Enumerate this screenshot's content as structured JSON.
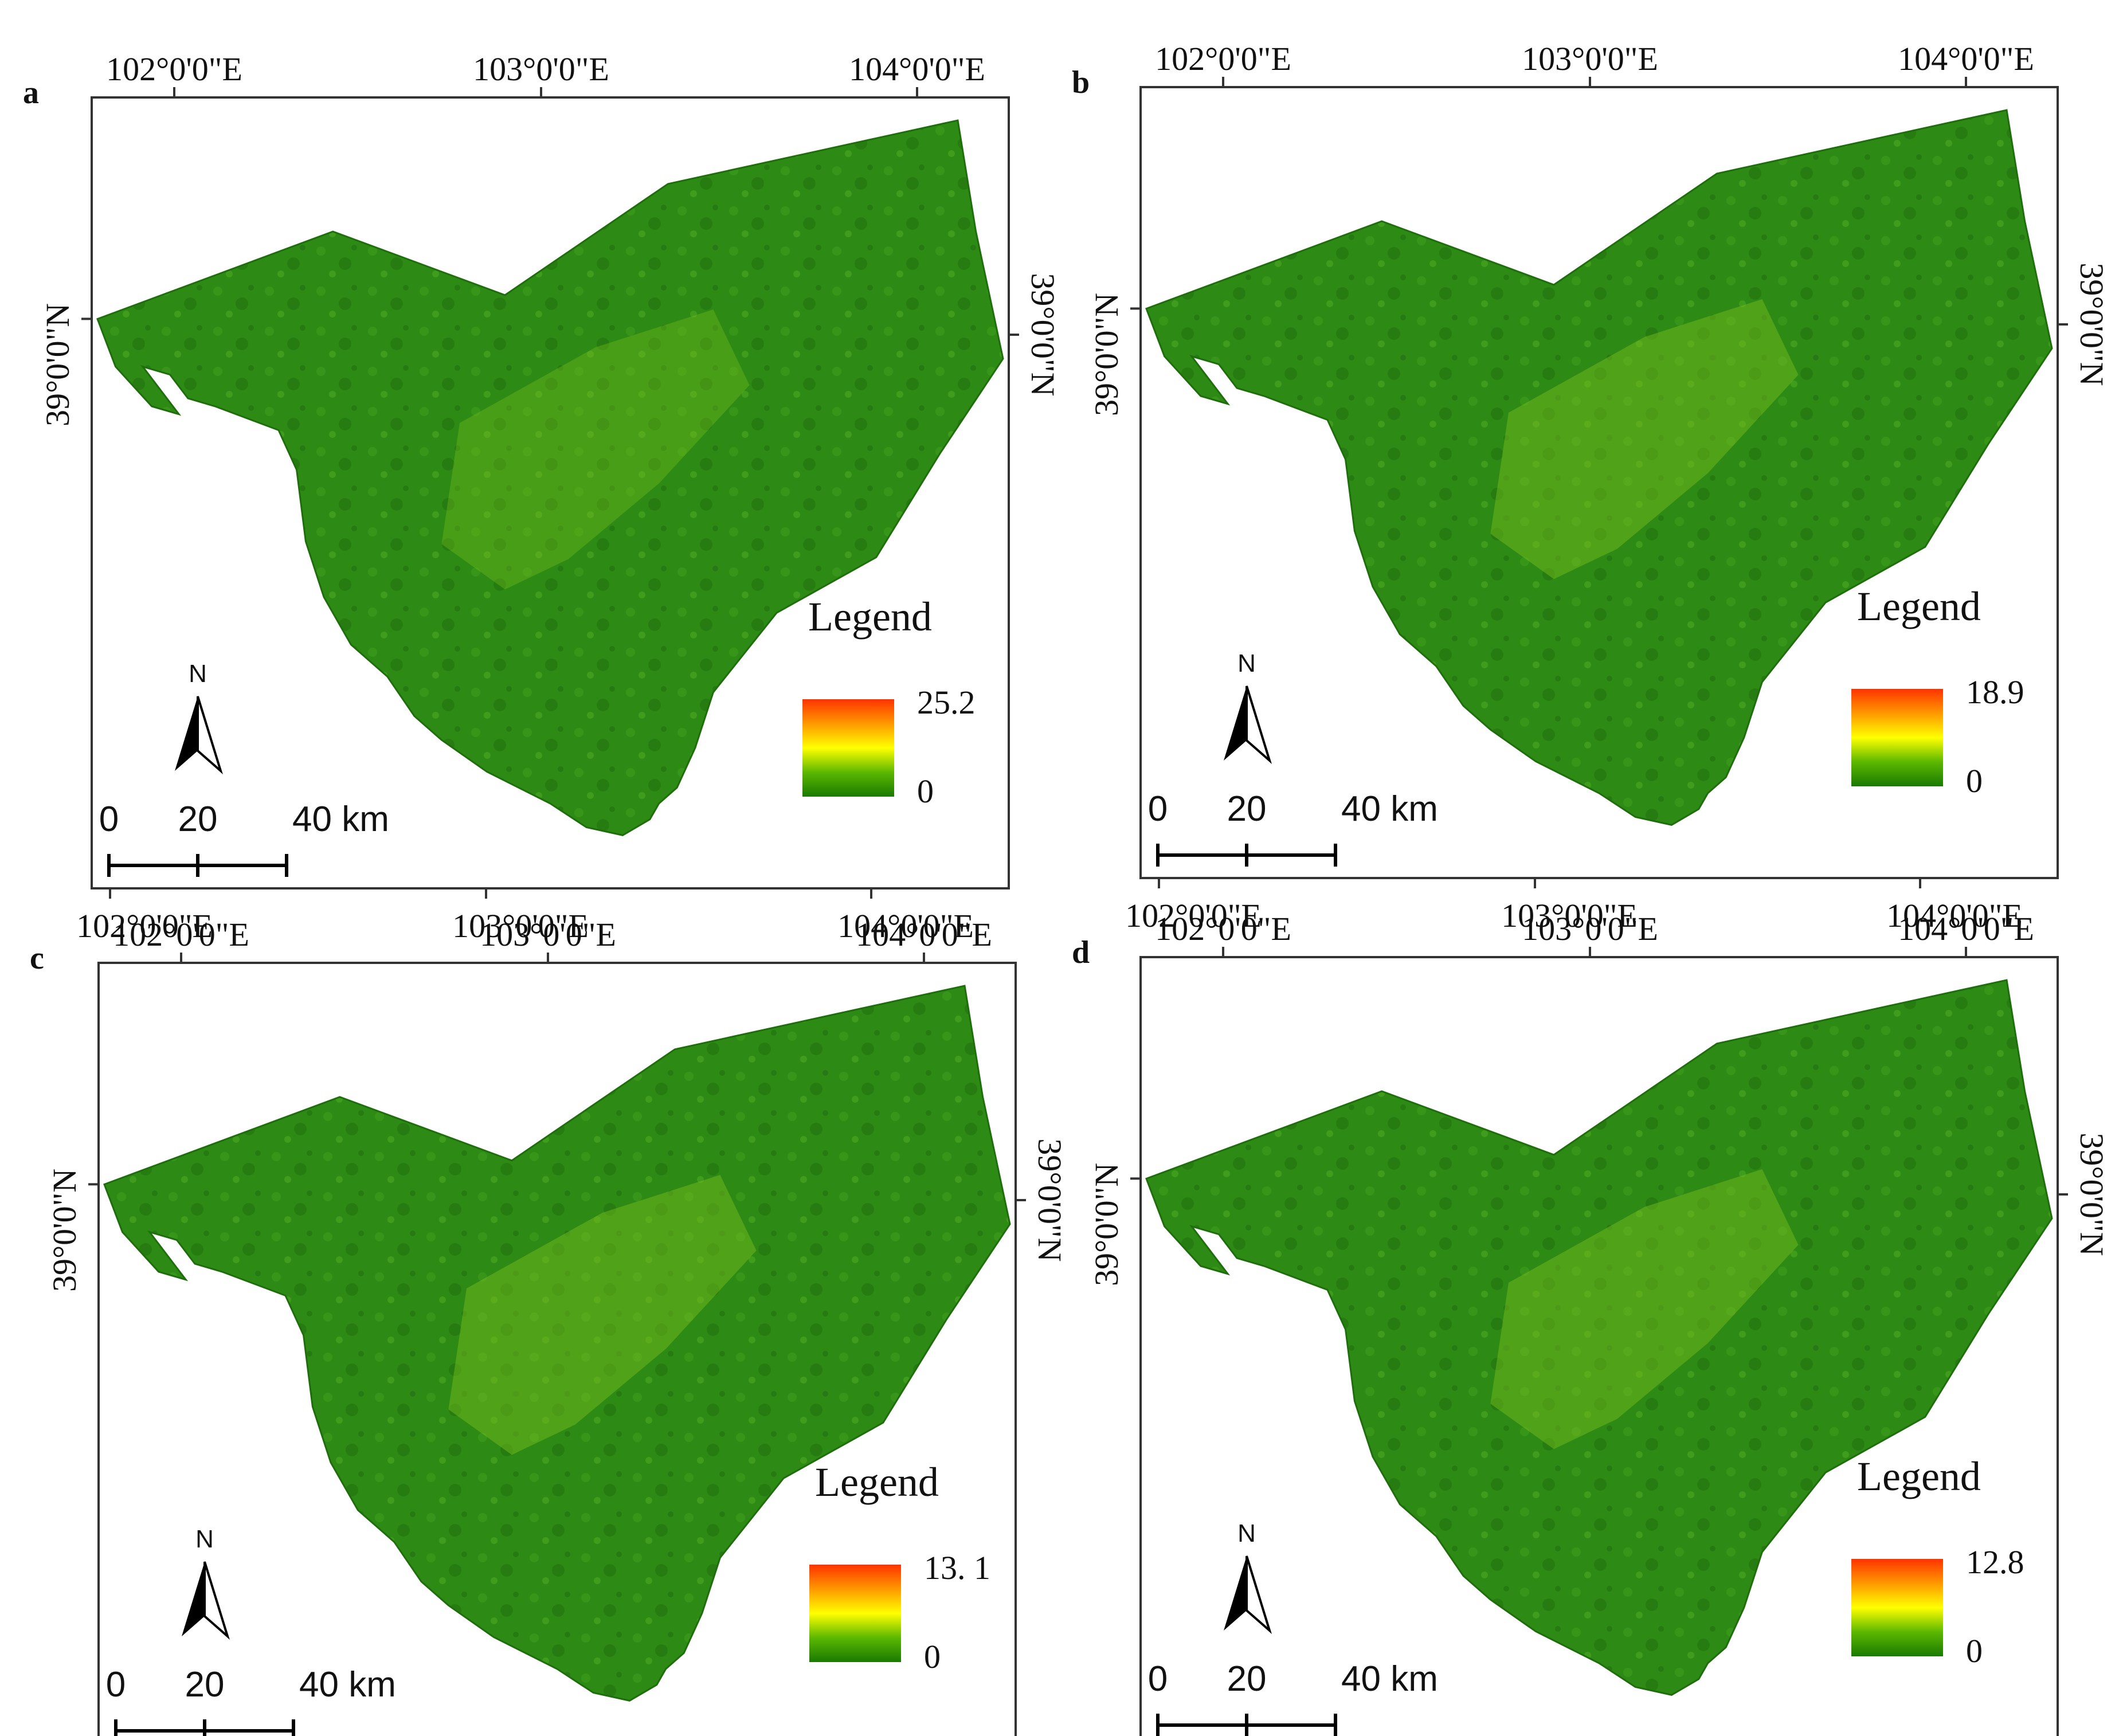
{
  "figure": {
    "panels": [
      {
        "id": "a",
        "panel_label": "a",
        "top_ticks": [
          "102°0'0\"E",
          "103°0'0\"E",
          "104°0'0\"E"
        ],
        "bottom_ticks": [
          "102°0'0\"E",
          "103°0'0\"E",
          "104°0'0\"E"
        ],
        "left_tick": "39°0'0\"N",
        "right_tick": "39°0'0\"N",
        "north_label": "N",
        "scale_labels": [
          "0",
          "20",
          "40 km"
        ],
        "legend_title": "Legend",
        "legend_max": "25.2",
        "legend_min": "0"
      },
      {
        "id": "b",
        "panel_label": "b",
        "top_ticks": [
          "102°0'0\"E",
          "103°0'0\"E",
          "104°0'0\"E"
        ],
        "bottom_ticks": [
          "102°0'0\"E",
          "103°0'0\"E",
          "104°0'0\"E"
        ],
        "left_tick": "39°0'0\"N",
        "right_tick": "39°0'0\"N",
        "north_label": "N",
        "scale_labels": [
          "0",
          "20",
          "40 km"
        ],
        "legend_title": "Legend",
        "legend_max": "18.9",
        "legend_min": "0"
      },
      {
        "id": "c",
        "panel_label": "c",
        "top_ticks": [
          "102°0'0\"E",
          "103°0'0\"E",
          "104°0'0\"E"
        ],
        "bottom_ticks": [
          "102°0'0\"E",
          "103°0'0\"E",
          "104°0'0\"E"
        ],
        "left_tick": "39°0'0\"N",
        "right_tick": "39°0'0\"N",
        "north_label": "N",
        "scale_labels": [
          "0",
          "20",
          "40 km"
        ],
        "legend_title": "Legend",
        "legend_max": "13. 1",
        "legend_min": "0"
      },
      {
        "id": "d",
        "panel_label": "d",
        "top_ticks": [
          "102°0'0\"E",
          "103°0'0\"E",
          "104°0'0\"E"
        ],
        "bottom_ticks": [
          "102°0'0\"E",
          "103°0'0\"E",
          "104°0'0\"E"
        ],
        "left_tick": "39°0'0\"N",
        "right_tick": "39°0'0\"N",
        "north_label": "N",
        "scale_labels": [
          "0",
          "20",
          "40 km"
        ],
        "legend_title": "Legend",
        "legend_max": "12.8",
        "legend_min": "0"
      }
    ],
    "colors": {
      "region_fill": "#2d8a14",
      "region_dark": "#1f6e0c",
      "region_light": "#7cc21e",
      "ramp_top": "#ff3300",
      "ramp_upper": "#ff9900",
      "ramp_mid": "#ffff00",
      "ramp_lower": "#5cb800",
      "ramp_bottom": "#1a7a00",
      "frame": "#333333",
      "text": "#111111"
    }
  }
}
